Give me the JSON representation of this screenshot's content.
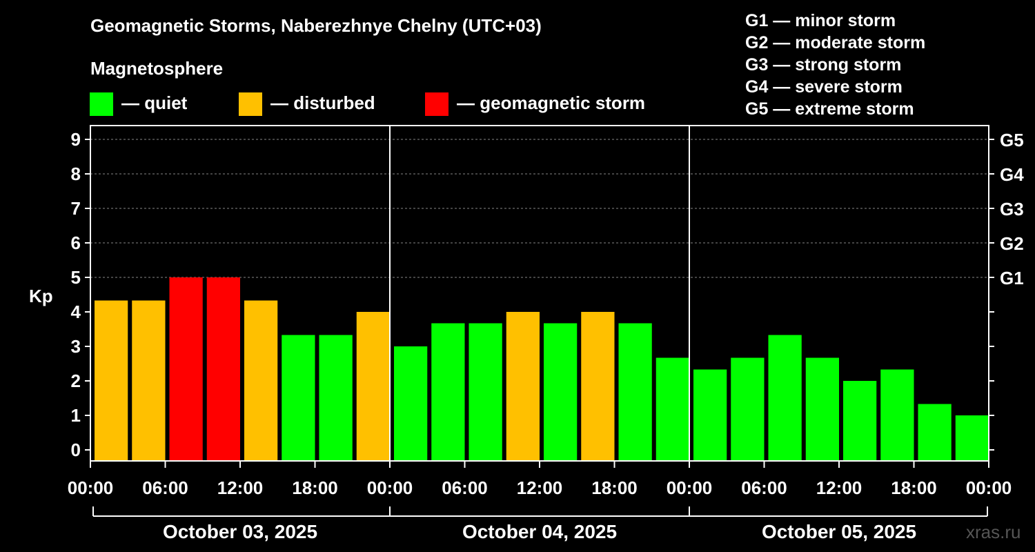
{
  "header": {
    "title": "Geomagnetic Storms, Naberezhnye Chelny (UTC+03)",
    "subtitle": "Magnetosphere"
  },
  "legend": [
    {
      "label": "— quiet",
      "color": "#00ff00"
    },
    {
      "label": "— disturbed",
      "color": "#ffc000"
    },
    {
      "label": "— geomagnetic storm",
      "color": "#ff0000"
    }
  ],
  "storm_levels": [
    "G1 — minor storm",
    "G2 — moderate storm",
    "G3 — strong storm",
    "G4 — severe storm",
    "G5 — extreme storm"
  ],
  "watermark": "xras.ru",
  "chart_data": {
    "type": "bar",
    "title": "Geomagnetic Storms, Naberezhnye Chelny (UTC+03)",
    "ylabel": "Kp",
    "ylim": [
      0,
      9
    ],
    "yticks": [
      "0",
      "1",
      "2",
      "3",
      "4",
      "5",
      "6",
      "7",
      "8",
      "9"
    ],
    "right_ticks": [
      {
        "value": 5,
        "label": "G1"
      },
      {
        "value": 6,
        "label": "G2"
      },
      {
        "value": 7,
        "label": "G3"
      },
      {
        "value": 8,
        "label": "G4"
      },
      {
        "value": 9,
        "label": "G5"
      }
    ],
    "xtick_labels": [
      "00:00",
      "06:00",
      "12:00",
      "18:00",
      "00:00",
      "06:00",
      "12:00",
      "18:00",
      "00:00",
      "06:00",
      "12:00",
      "18:00",
      "00:00"
    ],
    "days": [
      "October 03, 2025",
      "October 04, 2025",
      "October 05, 2025"
    ],
    "values": [
      4.33,
      4.33,
      5.0,
      5.0,
      4.33,
      3.33,
      3.33,
      4.0,
      3.0,
      3.67,
      3.67,
      4.0,
      3.67,
      4.0,
      3.67,
      2.67,
      2.33,
      2.67,
      3.33,
      2.67,
      2.0,
      2.33,
      1.33,
      1.0
    ],
    "status": [
      "disturbed",
      "disturbed",
      "storm",
      "storm",
      "disturbed",
      "quiet",
      "quiet",
      "disturbed",
      "quiet",
      "quiet",
      "quiet",
      "disturbed",
      "quiet",
      "disturbed",
      "quiet",
      "quiet",
      "quiet",
      "quiet",
      "quiet",
      "quiet",
      "quiet",
      "quiet",
      "quiet",
      "quiet"
    ],
    "colors": {
      "quiet": "#00ff00",
      "disturbed": "#ffc000",
      "storm": "#ff0000"
    },
    "grid": true
  }
}
